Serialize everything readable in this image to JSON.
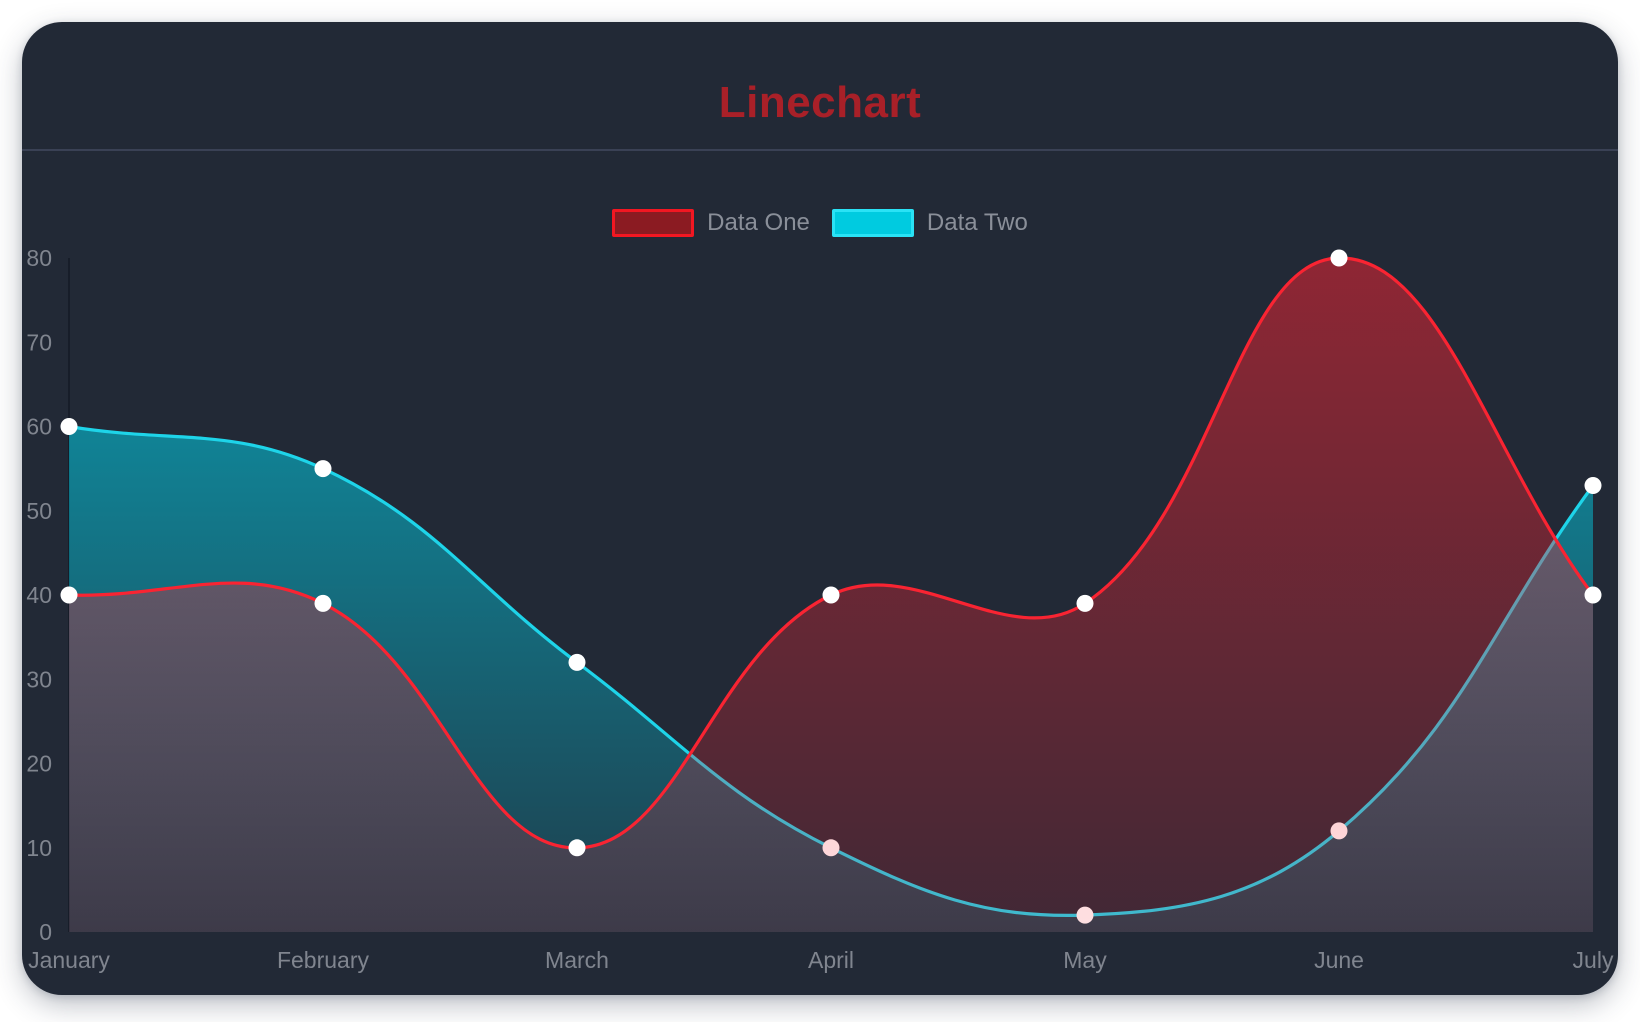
{
  "page": {
    "background_color": "#ffffff",
    "card_background_color": "#222936",
    "divider_color": "#3a4155"
  },
  "chart_data": {
    "type": "line",
    "title": "Linechart",
    "title_color": "#a92028",
    "categories": [
      "January",
      "February",
      "March",
      "April",
      "May",
      "June",
      "July"
    ],
    "series": [
      {
        "name": "Data One",
        "values": [
          40,
          39,
          10,
          40,
          39,
          80,
          40
        ],
        "line_color": "#f92432",
        "fill_top": "rgba(251,36,50,0.50)",
        "fill_bottom": "rgba(251,36,50,0.14)",
        "legend_fill": "#8b1b22",
        "legend_border": "#f21722"
      },
      {
        "name": "Data Two",
        "values": [
          60,
          55,
          32,
          10,
          2,
          12,
          53
        ],
        "line_color": "#1ed4e9",
        "fill_top": "rgba(0,214,238,0.66)",
        "fill_bottom": "rgba(0,214,238,0.12)",
        "legend_fill": "#00cbe0",
        "legend_border": "#2ae2f5"
      }
    ],
    "point_color": "#ffffff",
    "point_radius": 8.5,
    "line_width": 3.2,
    "curve_tension": 0.4,
    "yticks": [
      0,
      10,
      20,
      30,
      40,
      50,
      60,
      70,
      80
    ],
    "ylim": [
      0,
      80
    ],
    "xlabel": "",
    "ylabel": "",
    "grid": false,
    "legend_position": "top",
    "tick_color": "#80858f",
    "legend_label_color": "#8a8f99",
    "axis_line_color": "rgba(10,16,26,0.45)"
  }
}
